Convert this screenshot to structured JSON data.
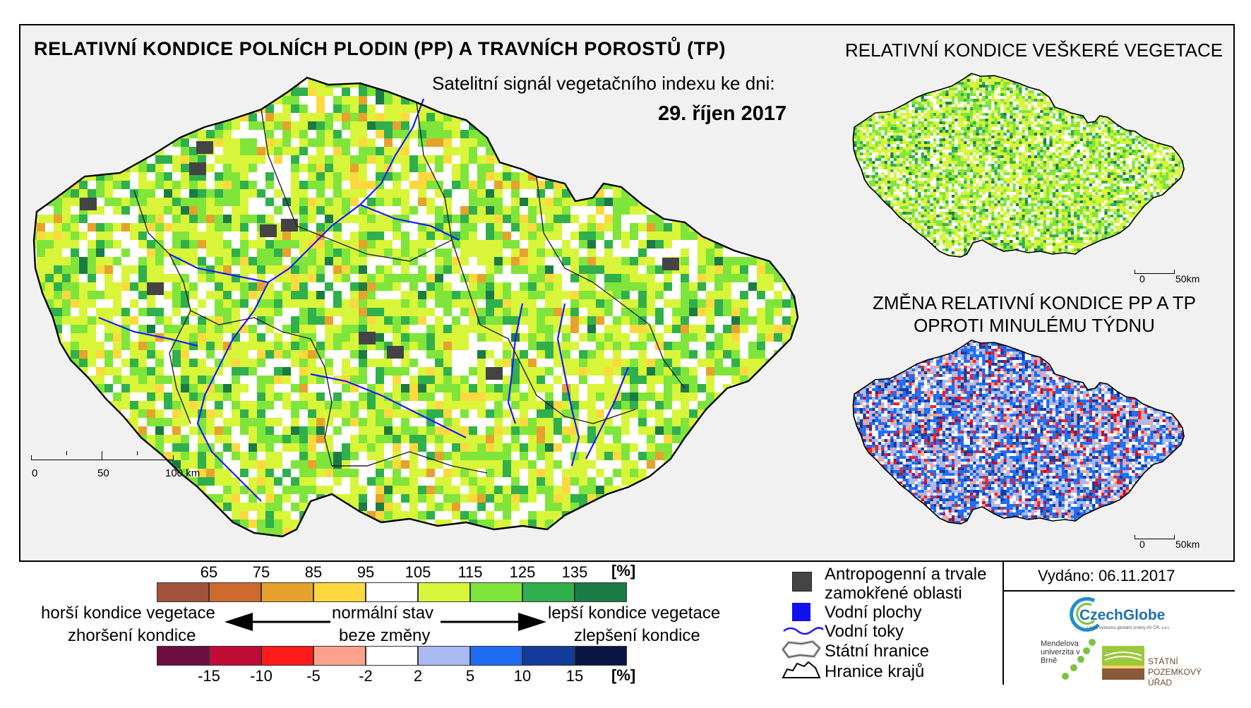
{
  "header": {
    "title_main": "RELATIVNÍ KONDICE POLNÍCH PLODIN (PP) A TRAVNÍCH POROSTŮ (TP)",
    "subtitle": "Satelitní signál vegetačního indexu ke dni:",
    "date": "29. říjen 2017",
    "title_right": "RELATIVNÍ KONDICE VEŠKERÉ VEGETACE",
    "title_change": "ZMĚNA RELATIVNÍ KONDICE PP A TP OPROTI MINULÉMU TÝDNU"
  },
  "main_map": {
    "scale_labels": [
      "0",
      "50",
      "100 km"
    ]
  },
  "mini_maps": {
    "scale_labels": [
      "0",
      "50km"
    ]
  },
  "legend_condition": {
    "ticks": [
      "65",
      "75",
      "85",
      "95",
      "105",
      "115",
      "125",
      "135"
    ],
    "unit": "[%]",
    "colors": [
      "#a0523a",
      "#cc6a30",
      "#e7a22d",
      "#fdd83e",
      "#ffffff",
      "#d9f53a",
      "#7fe53a",
      "#2fb04c",
      "#1b7b45"
    ]
  },
  "legend_change": {
    "ticks": [
      "-15",
      "-10",
      "-5",
      "-2",
      "2",
      "5",
      "10",
      "15"
    ],
    "unit": "[%]",
    "colors": [
      "#6b0d3f",
      "#c00c35",
      "#ff1a1a",
      "#fca28c",
      "#ffffff",
      "#a9b9f2",
      "#1e6cf3",
      "#123b9c",
      "#0a1545"
    ]
  },
  "arrows": {
    "left_top": "horší kondice vegetace",
    "left_bottom": "zhoršení kondice",
    "mid_top": "normální stav",
    "mid_bottom": "beze změny",
    "right_top": "lepší kondice vegetace",
    "right_bottom": "zlepšení kondice"
  },
  "symbols": {
    "anthropogenic": "Antropogenní a trvale zamokřené oblasti",
    "water": "Vodní plochy",
    "rivers": "Vodní toky",
    "state_border": "Státní hranice",
    "region_border": "Hranice krajů",
    "colors": {
      "anthropogenic": "#444444",
      "water": "#1010ee",
      "rivers": "#1a1aff"
    }
  },
  "issued": "Vydáno: 06.11.2017",
  "logos": {
    "czechglobe": "CzechGlobe",
    "czechglobe_sub": "Ústav výzkumu globální změny AV ČR, v.v.i.",
    "mendel": "Mendelova univerzita v Brně",
    "spu": "STÁTNÍ POZEMKOVÝ ÚŘAD"
  }
}
